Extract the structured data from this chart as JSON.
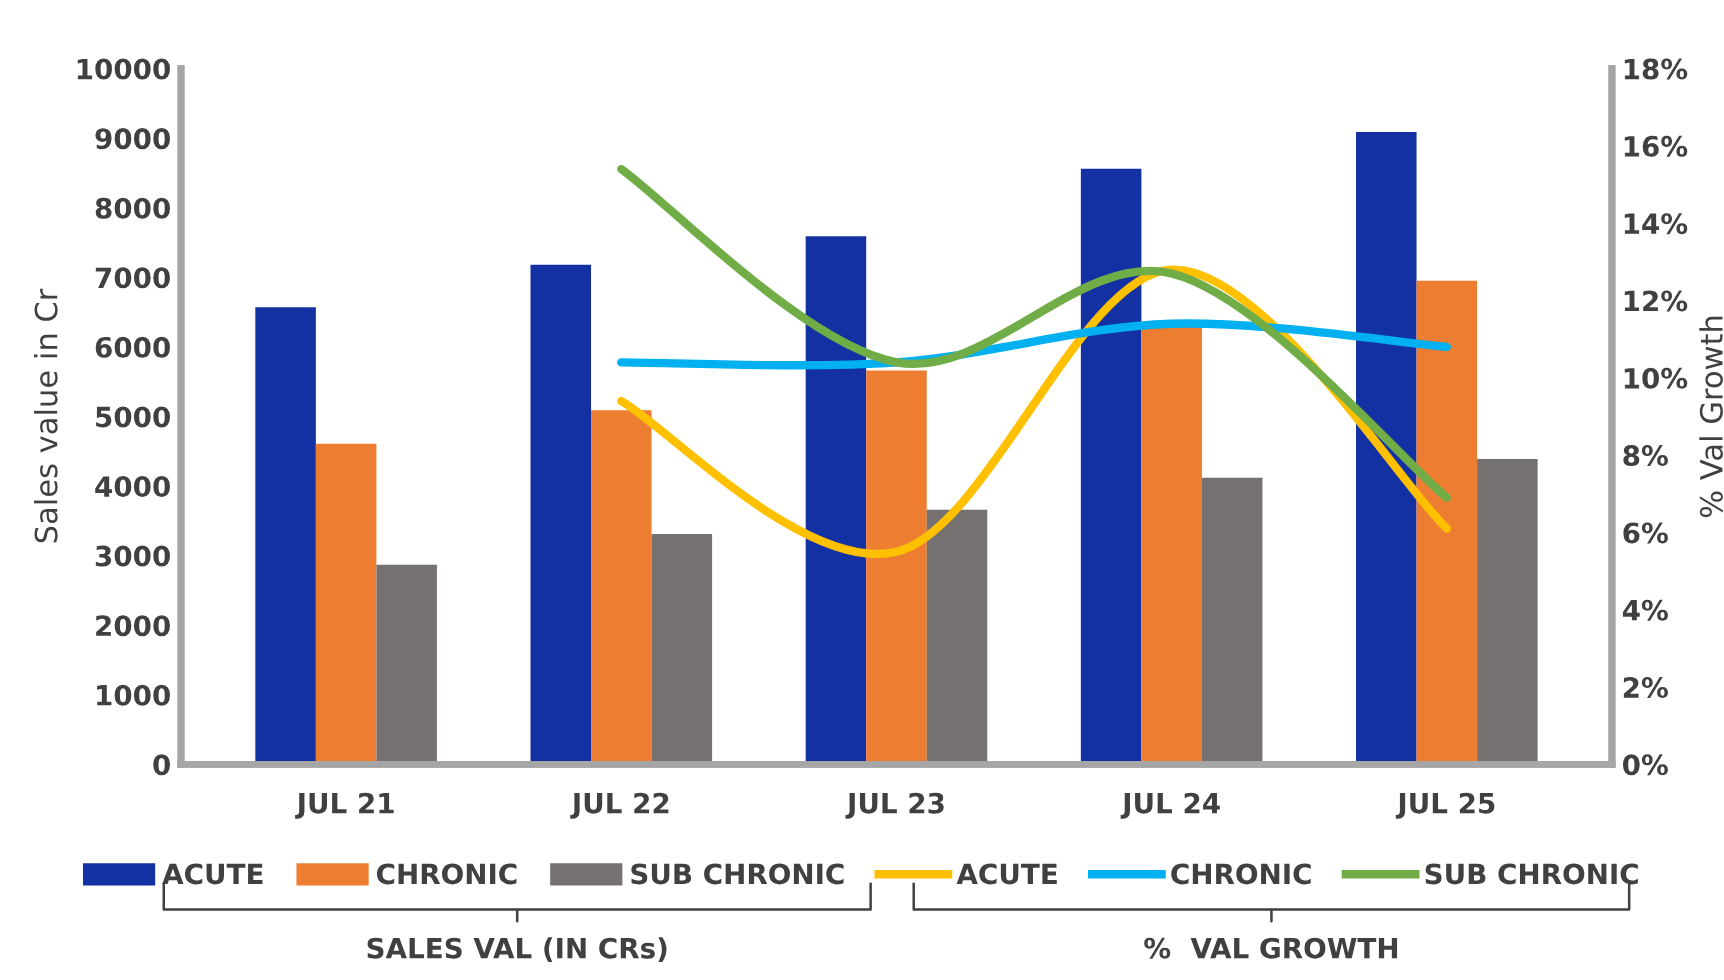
{
  "chart_data": {
    "type": "bar",
    "categories": [
      "JUL 21",
      "JUL 22",
      "JUL 23",
      "JUL 24",
      "JUL 25"
    ],
    "ylabel": "Sales value in Cr",
    "y2label": "% Val Growth",
    "ylim": [
      0,
      10000
    ],
    "yticks": [
      0,
      1000,
      2000,
      3000,
      4000,
      5000,
      6000,
      7000,
      8000,
      9000,
      10000
    ],
    "y2lim": [
      0,
      18
    ],
    "y2ticks": [
      {
        "value": 0,
        "label": "0%"
      },
      {
        "value": 2,
        "label": "2%"
      },
      {
        "value": 4,
        "label": "4%"
      },
      {
        "value": 6,
        "label": "6%"
      },
      {
        "value": 8,
        "label": "8%"
      },
      {
        "value": 10,
        "label": "10%"
      },
      {
        "value": 12,
        "label": "12%"
      },
      {
        "value": 14,
        "label": "14%"
      },
      {
        "value": 16,
        "label": "16%"
      },
      {
        "value": 18,
        "label": "18%"
      }
    ],
    "series": [
      {
        "name": "ACUTE",
        "color": "#1431a3",
        "values": [
          6570,
          7180,
          7590,
          8560,
          9090
        ]
      },
      {
        "name": "CHRONIC",
        "color": "#ed7d31",
        "values": [
          4610,
          5090,
          5660,
          6330,
          6950
        ]
      },
      {
        "name": "SUB CHRONIC",
        "color": "#767171",
        "values": [
          2870,
          3310,
          3660,
          4120,
          4390
        ]
      },
      {
        "name": "ACUTE",
        "type": "line",
        "axis": "y2",
        "color": "#ffc000",
        "values": [
          null,
          9.4,
          5.5,
          12.8,
          6.1
        ]
      },
      {
        "name": "CHRONIC",
        "type": "line",
        "axis": "y2",
        "color": "#00b0f0",
        "values": [
          null,
          10.4,
          10.4,
          11.4,
          10.8
        ]
      },
      {
        "name": "SUB CHRONIC",
        "type": "line",
        "axis": "y2",
        "color": "#70ad47",
        "values": [
          null,
          15.4,
          10.4,
          12.7,
          6.9
        ]
      }
    ],
    "annotations": [
      "SALES VAL (IN CRs)",
      "%  VAL GROWTH"
    ],
    "legend": "bottom",
    "grid": false,
    "line_style": "solid",
    "marker": "none"
  }
}
